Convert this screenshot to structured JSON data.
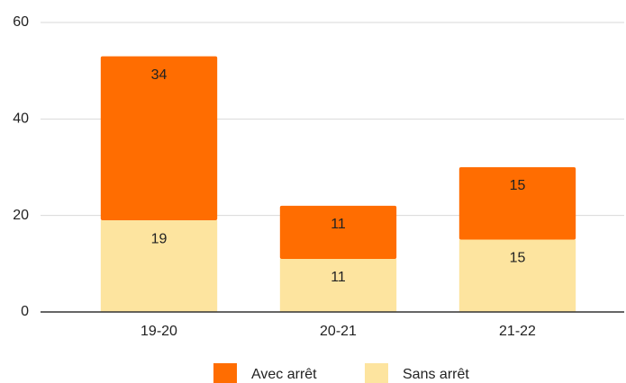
{
  "chart_data": {
    "type": "stacked_bar",
    "categories": [
      "19-20",
      "20-21",
      "21-22"
    ],
    "series": [
      {
        "name": "Sans arrêt",
        "color": "#fde49f",
        "values": [
          19,
          11,
          15
        ]
      },
      {
        "name": "Avec arrêt",
        "color": "#ff6d01",
        "values": [
          34,
          11,
          15
        ]
      }
    ],
    "ylim": [
      0,
      60
    ],
    "yticks": [
      0,
      20,
      40,
      60
    ],
    "grid": true,
    "legend": "bottom"
  }
}
